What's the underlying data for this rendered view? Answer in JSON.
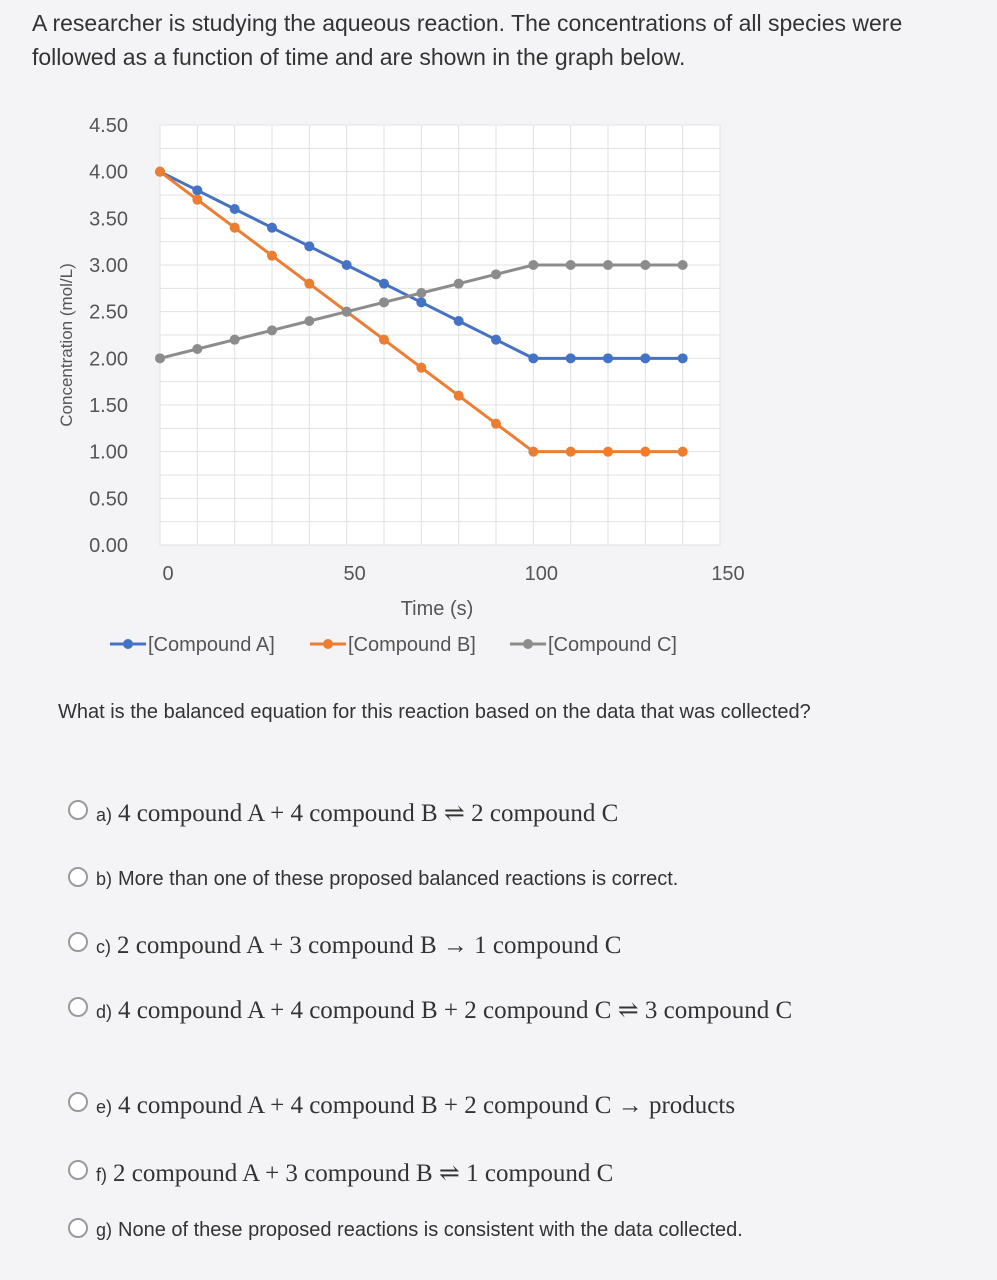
{
  "intro_text": "A researcher is studying the aqueous reaction. The concentrations of all species were followed as a function of time and are shown in the graph below.",
  "question_text": "What is the balanced equation for this reaction based on the data that was collected?",
  "options": [
    {
      "letter": "a)",
      "text": "4 compound A + 4 compound B ⇌ 2 compound C"
    },
    {
      "letter": "b)",
      "text": "More than one of these proposed balanced reactions is correct."
    },
    {
      "letter": "c)",
      "text": "2 compound A + 3 compound B → 1 compound C"
    },
    {
      "letter": "d)",
      "text": "4 compound A + 4 compound B + 2 compound C ⇌ 3 compound C"
    },
    {
      "letter": "e)",
      "text": "4 compound A + 4 compound B + 2 compound C → products"
    },
    {
      "letter": "f)",
      "text": "2 compound A + 3 compound B ⇌ 1 compound C"
    },
    {
      "letter": "g)",
      "text": "None of these proposed reactions is consistent with the data collected."
    }
  ],
  "chart_data": {
    "type": "line",
    "xlabel": "Time (s)",
    "ylabel": "Concentration (mol/L)",
    "xlim": [
      0,
      150
    ],
    "ylim": [
      0,
      4.5
    ],
    "xticks": [
      "0",
      "50",
      "100",
      "150"
    ],
    "yticks": [
      "0.00",
      "0.50",
      "1.00",
      "1.50",
      "2.00",
      "2.50",
      "3.00",
      "3.50",
      "4.00",
      "4.50"
    ],
    "grid": true,
    "legend": "bottom",
    "series": [
      {
        "name": "[Compound A]",
        "color": "#4472c4",
        "x": [
          0,
          10,
          20,
          30,
          40,
          50,
          60,
          70,
          80,
          90,
          100,
          110,
          120,
          130,
          140
        ],
        "y": [
          4.0,
          3.8,
          3.6,
          3.4,
          3.2,
          3.0,
          2.8,
          2.6,
          2.4,
          2.2,
          2.0,
          2.0,
          2.0,
          2.0,
          2.0
        ]
      },
      {
        "name": "[Compound B]",
        "color": "#ed7d31",
        "x": [
          0,
          10,
          20,
          30,
          40,
          50,
          60,
          70,
          80,
          90,
          100,
          110,
          120,
          130,
          140
        ],
        "y": [
          4.0,
          3.7,
          3.4,
          3.1,
          2.8,
          2.5,
          2.2,
          1.9,
          1.6,
          1.3,
          1.0,
          1.0,
          1.0,
          1.0,
          1.0
        ]
      },
      {
        "name": "[Compound C]",
        "color": "#8c8c8c",
        "x": [
          0,
          10,
          20,
          30,
          40,
          50,
          60,
          70,
          80,
          90,
          100,
          110,
          120,
          130,
          140
        ],
        "y": [
          2.0,
          2.1,
          2.2,
          2.3,
          2.4,
          2.5,
          2.6,
          2.7,
          2.8,
          2.9,
          3.0,
          3.0,
          3.0,
          3.0,
          3.0
        ]
      }
    ]
  }
}
